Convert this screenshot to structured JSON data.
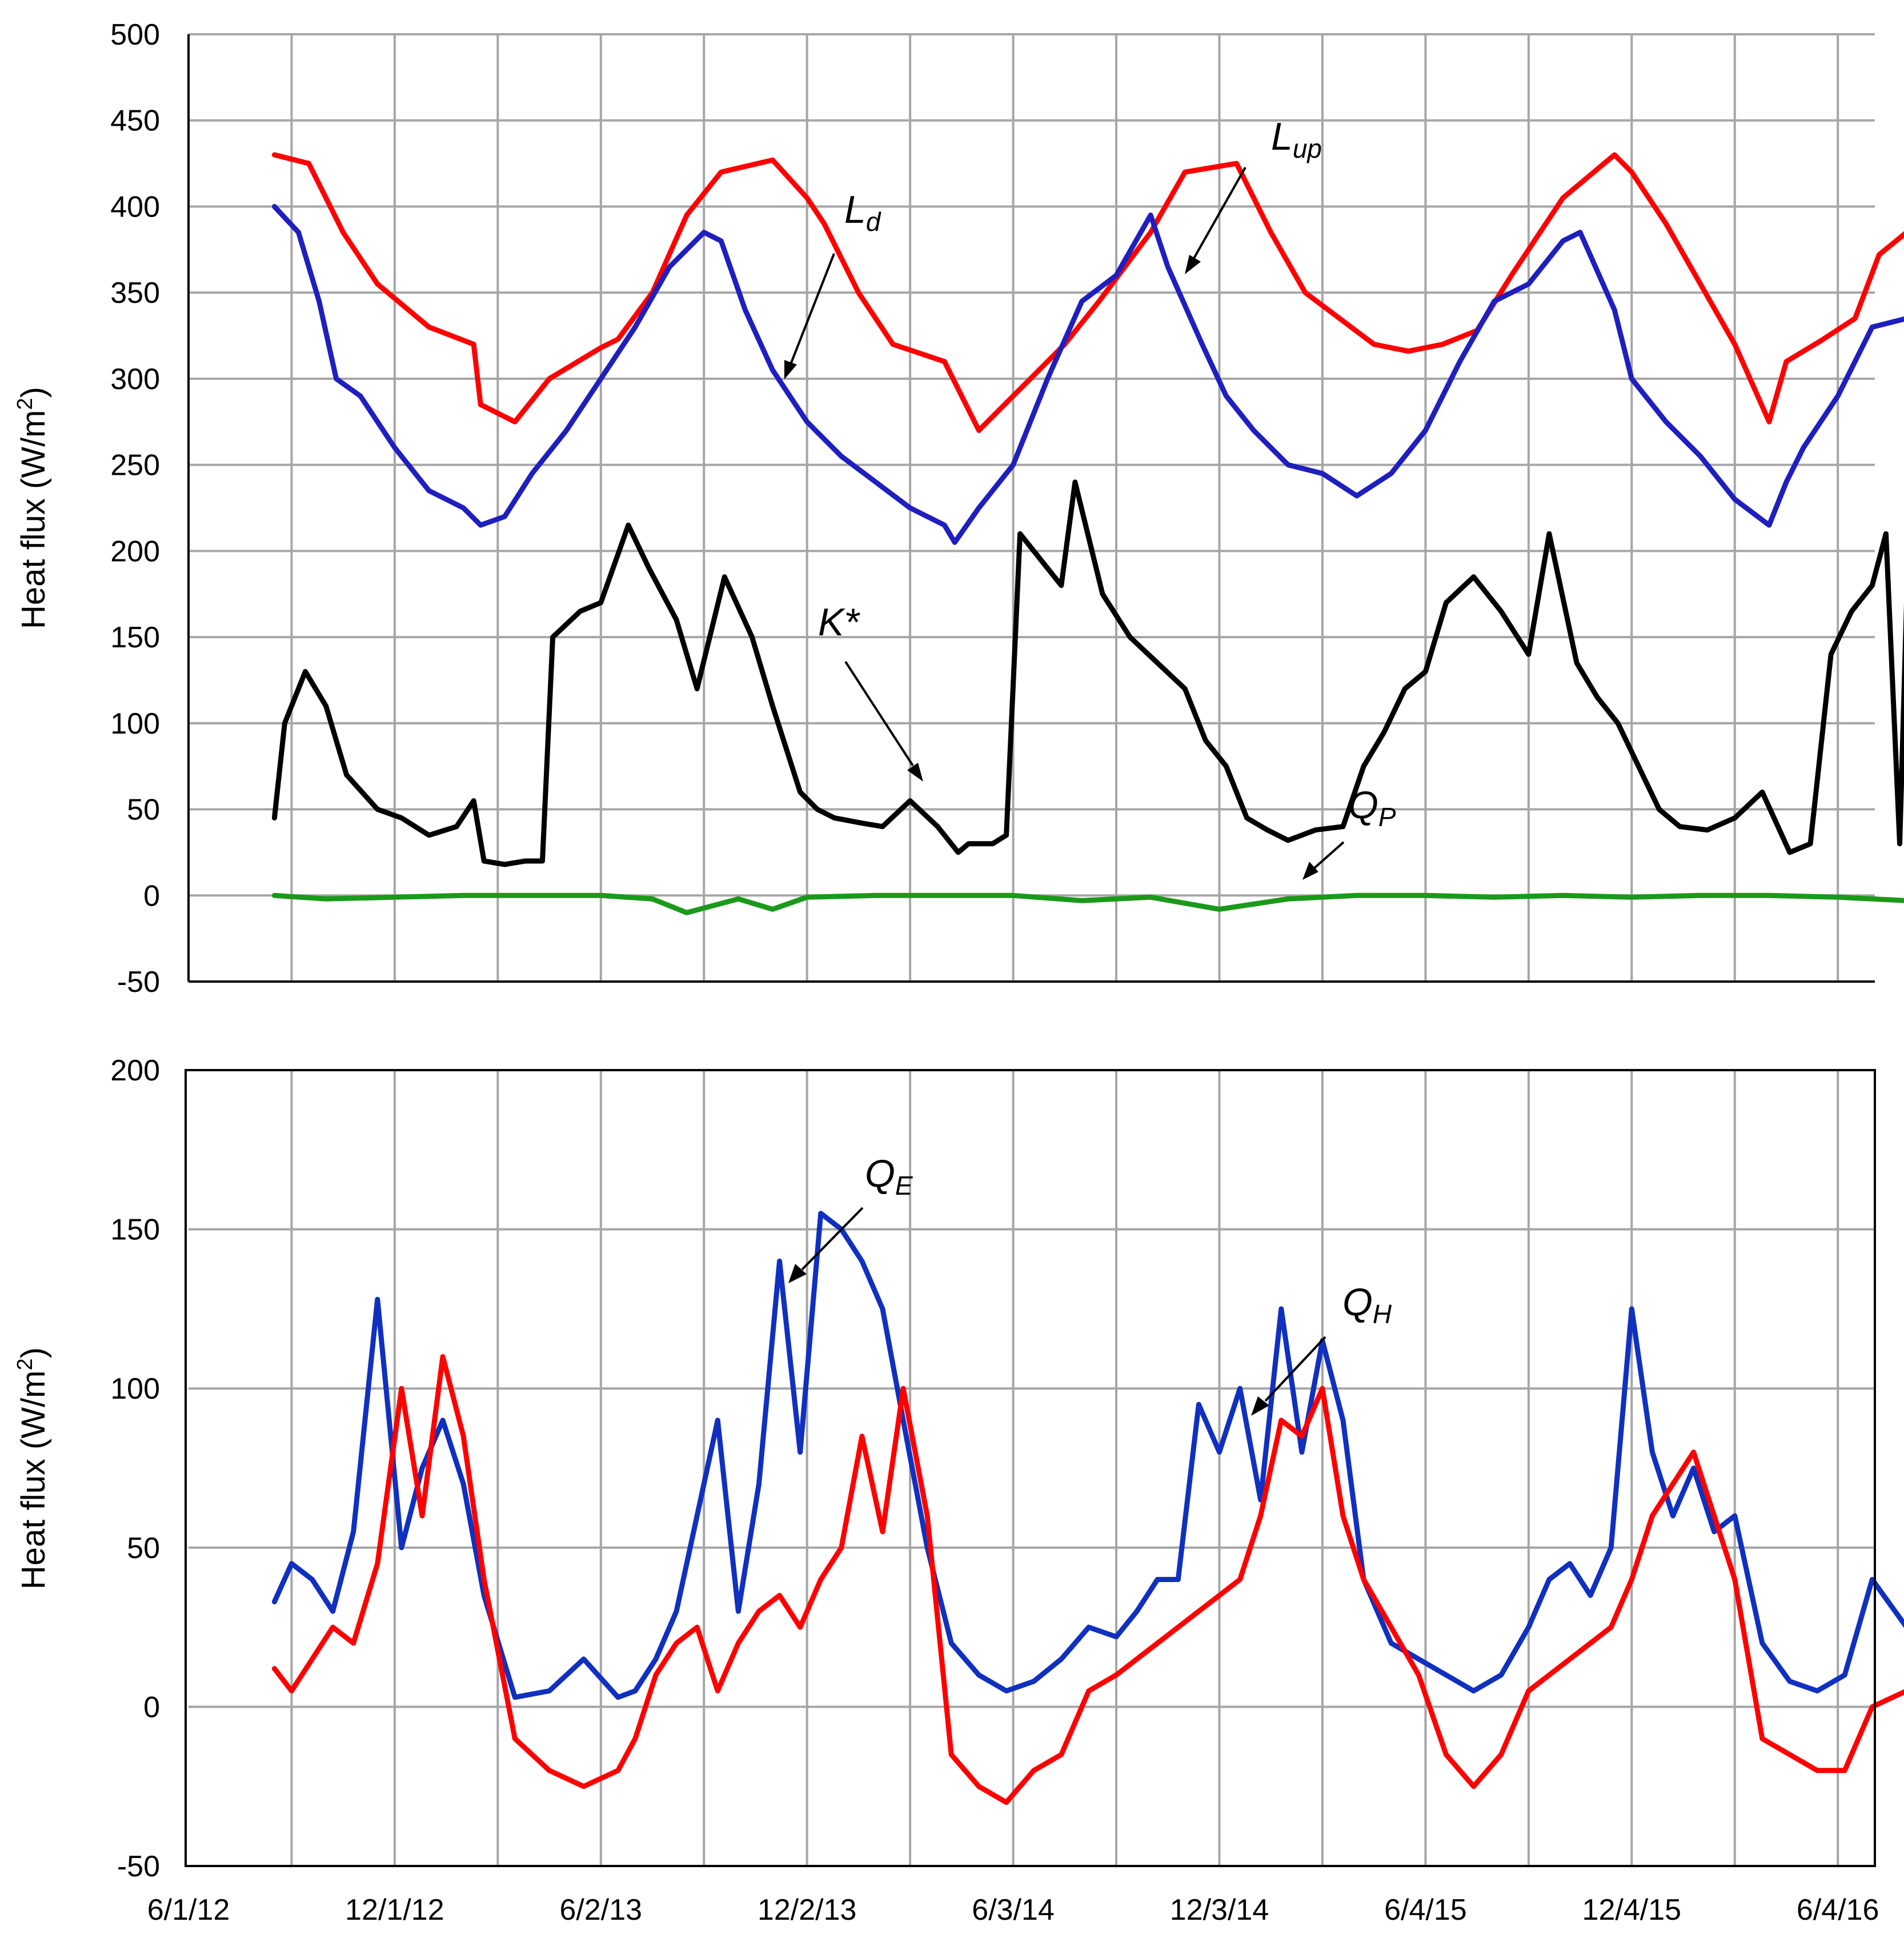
{
  "chart_data": [
    {
      "type": "line",
      "panel": "top",
      "title": "",
      "xlabel": "",
      "ylabel": "Heat flux (W/m²)",
      "ylabel_parts": [
        "Heat flux (W/m",
        "2",
        ")"
      ],
      "ylim": [
        -50,
        500
      ],
      "yticks": [
        "500",
        "450",
        "400",
        "350",
        "300",
        "250",
        "200",
        "150",
        "100",
        "50",
        "0",
        "-50"
      ],
      "grid": true,
      "x_unit": "months since 6/1/12",
      "xlim": [
        0,
        48
      ],
      "series": [
        {
          "name": "Lup",
          "label": "L",
          "label_sub": "up",
          "color": "#ff0000",
          "x": [
            2.5,
            3.5,
            4.5,
            5.5,
            7,
            8.3,
            8.5,
            9.5,
            10.5,
            12,
            12.5,
            13.5,
            14.5,
            15.5,
            17,
            18,
            18.5,
            19.5,
            20.5,
            22,
            23,
            24.5,
            25.5,
            26.5,
            28,
            29,
            30.5,
            31.5,
            32.5,
            34.5,
            35.5,
            36.5,
            37.5,
            38.5,
            40,
            41.5,
            42,
            43,
            44,
            45,
            46,
            46.5
          ],
          "values": [
            430,
            425,
            385,
            355,
            330,
            320,
            285,
            275,
            300,
            318,
            323,
            350,
            395,
            420,
            427,
            405,
            390,
            350,
            320,
            310,
            270,
            300,
            320,
            345,
            385,
            420,
            425,
            385,
            350,
            320,
            316,
            320,
            328,
            360,
            405,
            430,
            420,
            390,
            355,
            320,
            275,
            310
          ]
        },
        {
          "name": "Lup (end)",
          "label": "",
          "color": "#ff0000",
          "x": [
            46.5,
            47.5,
            48.5,
            49.2,
            50
          ],
          "values": [
            310,
            322,
            335,
            372,
            385
          ]
        },
        {
          "name": "Ld",
          "label": "L",
          "label_sub": "d",
          "color": "#1f1fbf",
          "x": [
            2.5,
            3.2,
            3.8,
            4.3,
            5,
            6,
            7,
            8,
            8.5,
            9.2,
            10,
            11,
            12,
            13,
            14,
            15,
            15.5,
            16.2,
            17,
            18,
            19,
            20,
            21,
            22,
            22.3,
            23,
            24,
            25,
            26,
            27,
            28,
            28.5,
            29.5,
            30.2,
            31,
            32,
            33,
            34,
            35,
            36,
            37,
            38,
            39,
            40,
            40.5,
            41.5,
            42,
            43,
            44,
            45,
            46,
            46.5,
            47,
            48,
            49,
            50
          ],
          "values": [
            400,
            385,
            345,
            300,
            290,
            260,
            235,
            225,
            215,
            220,
            245,
            270,
            300,
            330,
            365,
            385,
            380,
            340,
            305,
            275,
            255,
            240,
            225,
            215,
            205,
            225,
            250,
            300,
            345,
            360,
            395,
            365,
            320,
            290,
            270,
            250,
            245,
            232,
            245,
            270,
            310,
            345,
            355,
            380,
            385,
            340,
            300,
            275,
            255,
            230,
            215,
            240,
            260,
            290,
            330,
            335
          ]
        },
        {
          "name": "K*",
          "label": "K*",
          "color": "#000000",
          "x": [
            2.5,
            2.8,
            3.4,
            4,
            4.6,
            5.5,
            6.2,
            7,
            7.8,
            8.3,
            8.6,
            9.2,
            9.8,
            10.3,
            10.6,
            11.4,
            12,
            12.8,
            13.4,
            14.2,
            14.8,
            15.6,
            16.4,
            17,
            17.8,
            18.3,
            18.8,
            19.6,
            20.2,
            21,
            21.8,
            22.4,
            22.7,
            23.4,
            23.8,
            24.2,
            24.8,
            25.4,
            25.8,
            26.6,
            27.4,
            28.2,
            29,
            29.6,
            30.2,
            30.8,
            31.4,
            32,
            32.8,
            33.6,
            34.2,
            34.8,
            35.4,
            36,
            36.6,
            37.4,
            38.2,
            39,
            39.6,
            40.4,
            41,
            41.6,
            42.2,
            42.8,
            43.4,
            44.2,
            45,
            45.8,
            46.6,
            47.2,
            47.8,
            48.4,
            49,
            49.4,
            49.8,
            50
          ],
          "values": [
            45,
            100,
            130,
            110,
            70,
            50,
            45,
            35,
            40,
            55,
            20,
            18,
            20,
            20,
            150,
            165,
            170,
            215,
            190,
            160,
            120,
            185,
            150,
            110,
            60,
            50,
            45,
            42,
            40,
            55,
            40,
            25,
            30,
            30,
            35,
            210,
            195,
            180,
            240,
            175,
            150,
            135,
            120,
            90,
            75,
            45,
            38,
            32,
            38,
            40,
            75,
            95,
            120,
            130,
            170,
            185,
            165,
            140,
            210,
            135,
            115,
            100,
            75,
            50,
            40,
            38,
            45,
            60,
            25,
            30,
            140,
            165,
            180,
            210,
            30,
            170
          ]
        },
        {
          "name": "QP",
          "label": "Q",
          "label_sub": "P",
          "color": "#1a9a1a",
          "x": [
            2.5,
            4,
            6,
            8,
            10,
            12,
            13.5,
            14.5,
            16,
            17,
            18,
            20,
            22,
            24,
            26,
            28,
            30,
            32,
            34,
            36,
            38,
            40,
            42,
            44,
            46,
            48,
            50
          ],
          "values": [
            0,
            -2,
            -1,
            0,
            0,
            0,
            -2,
            -10,
            -2,
            -8,
            -1,
            0,
            0,
            0,
            -3,
            -1,
            -8,
            -2,
            0,
            0,
            -1,
            0,
            -1,
            0,
            0,
            -1,
            -3
          ]
        }
      ]
    },
    {
      "type": "line",
      "panel": "bottom",
      "title": "",
      "xlabel": "",
      "ylabel": "Heat flux (W/m²)",
      "ylabel_parts": [
        "Heat flux (W/m",
        "2",
        ")"
      ],
      "ylim": [
        -50,
        200
      ],
      "yticks": [
        "200",
        "150",
        "100",
        "50",
        "0",
        "-50"
      ],
      "grid": true,
      "categories": [
        "6/1/12",
        "12/1/12",
        "6/2/13",
        "12/2/13",
        "6/3/14",
        "12/3/14",
        "6/4/15",
        "12/4/15",
        "6/4/16"
      ],
      "x_unit": "months since 6/1/12",
      "xlim": [
        0,
        48
      ],
      "series": [
        {
          "name": "QE",
          "label": "Q",
          "label_sub": "E",
          "color": "#1030c0",
          "x": [
            2.5,
            3,
            3.6,
            4.2,
            4.8,
            5.5,
            6.2,
            6.8,
            7.4,
            8,
            8.6,
            9.5,
            10.5,
            11.5,
            12.5,
            13,
            13.6,
            14.2,
            14.8,
            15.4,
            16,
            16.6,
            17.2,
            17.8,
            18.4,
            19,
            19.6,
            20.2,
            20.8,
            21.5,
            22.2,
            23,
            23.8,
            24.6,
            25.4,
            26.2,
            27,
            27.6,
            28.2,
            28.8,
            29.4,
            30,
            30.6,
            31.2,
            31.8,
            32.4,
            33,
            33.6,
            34.2,
            35,
            35.8,
            36.6,
            37.4,
            38.2,
            39,
            39.6,
            40.2,
            40.8,
            41.4,
            42,
            42.6,
            43.2,
            43.8,
            44.4,
            45,
            45.8,
            46.6,
            47.4,
            48.2,
            49,
            50
          ],
          "values": [
            33,
            45,
            40,
            30,
            55,
            128,
            50,
            75,
            90,
            70,
            35,
            3,
            5,
            15,
            3,
            5,
            15,
            30,
            60,
            90,
            30,
            70,
            140,
            80,
            155,
            150,
            140,
            125,
            90,
            50,
            20,
            10,
            5,
            8,
            15,
            25,
            22,
            30,
            40,
            40,
            95,
            80,
            100,
            65,
            125,
            80,
            115,
            90,
            40,
            20,
            15,
            10,
            5,
            10,
            25,
            40,
            45,
            35,
            50,
            125,
            80,
            60,
            75,
            55,
            60,
            20,
            8,
            5,
            10,
            40,
            25
          ]
        },
        {
          "name": "QH",
          "label": "Q",
          "label_sub": "H",
          "color": "#ff0000",
          "x": [
            2.5,
            3,
            3.6,
            4.2,
            4.8,
            5.5,
            6.2,
            6.8,
            7.4,
            8,
            8.6,
            9.5,
            10.5,
            11.5,
            12.5,
            13,
            13.6,
            14.2,
            14.8,
            15.4,
            16,
            16.6,
            17.2,
            17.8,
            18.4,
            19,
            19.6,
            20.2,
            20.8,
            21.5,
            22.2,
            23,
            23.8,
            24.6,
            25.4,
            26.2,
            27,
            27.6,
            28.2,
            28.8,
            29.4,
            30,
            30.6,
            31.2,
            31.8,
            32.4,
            33,
            33.6,
            34.2,
            35,
            35.8,
            36.6,
            37.4,
            38.2,
            39,
            39.6,
            40.2,
            40.8,
            41.4,
            42,
            42.6,
            43.2,
            43.8,
            44.4,
            45,
            45.8,
            46.6,
            47.4,
            48.2,
            49,
            50
          ],
          "values": [
            12,
            5,
            15,
            25,
            20,
            45,
            100,
            60,
            110,
            85,
            40,
            -10,
            -20,
            -25,
            -20,
            -10,
            10,
            20,
            25,
            5,
            20,
            30,
            35,
            25,
            40,
            50,
            85,
            55,
            100,
            60,
            -15,
            -25,
            -30,
            -20,
            -15,
            5,
            10,
            15,
            20,
            25,
            30,
            35,
            40,
            60,
            90,
            85,
            100,
            60,
            40,
            25,
            10,
            -15,
            -25,
            -15,
            5,
            10,
            15,
            20,
            25,
            40,
            60,
            70,
            80,
            60,
            40,
            -10,
            -15,
            -20,
            -20,
            0,
            5
          ]
        }
      ]
    }
  ]
}
